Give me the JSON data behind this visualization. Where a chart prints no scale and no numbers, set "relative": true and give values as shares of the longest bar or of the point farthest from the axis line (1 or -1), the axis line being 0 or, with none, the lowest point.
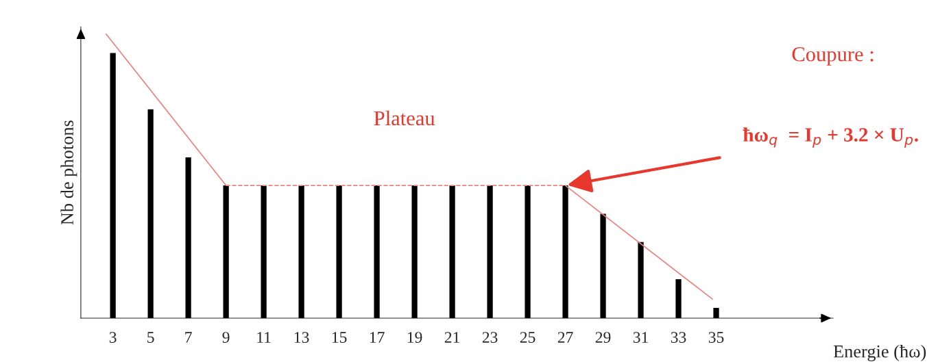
{
  "chart_data": {
    "type": "bar",
    "relative": true,
    "xlabel": "Energie (ħω)",
    "ylabel": "Nb de photons",
    "x": [
      3,
      5,
      7,
      9,
      11,
      13,
      15,
      17,
      19,
      21,
      23,
      25,
      27,
      29,
      31,
      33,
      35
    ],
    "xlim": [
      1.3,
      41.2
    ],
    "xticks": [
      3,
      5,
      7,
      9,
      11,
      13,
      15,
      17,
      19,
      21,
      23,
      25,
      27,
      29,
      31,
      33,
      35
    ],
    "series": [
      {
        "color": "#000000",
        "values": [
          0.933,
          0.735,
          0.566,
          0.467,
          0.467,
          0.467,
          0.467,
          0.467,
          0.467,
          0.467,
          0.467,
          0.467,
          0.467,
          0.367,
          0.268,
          0.137,
          0.036
        ]
      },
      {
        "type": "line",
        "color": "#f08080",
        "line_style": "solid",
        "x": [
          2.64,
          9
        ],
        "values": [
          1,
          0.467
        ]
      },
      {
        "type": "line",
        "color": "#f08080",
        "line_style": "dashed",
        "x": [
          9,
          27
        ],
        "values": [
          0.467,
          0.467
        ]
      },
      {
        "type": "line",
        "color": "#f08080",
        "line_style": "solid",
        "x": [
          27,
          34.8
        ],
        "values": [
          0.467,
          0.067
        ]
      }
    ],
    "annotations": [
      "Plateau",
      "Coupure :",
      {
        "text": "ħω$_{q}$  = I$_{p}$ + 3.2 × U$_{p}$.",
        "x": 27,
        "y": 0.467
      }
    ],
    "grid": false
  }
}
